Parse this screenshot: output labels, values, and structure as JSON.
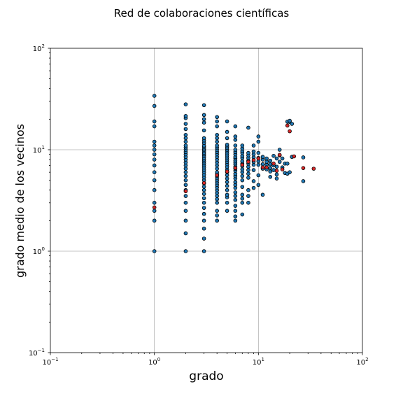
{
  "chart_data": {
    "type": "scatter",
    "title": "Red de colaboraciones científicas",
    "xlabel": "grado",
    "ylabel": "grado medio de los vecinos",
    "xscale": "log",
    "yscale": "log",
    "xlim": [
      0.1,
      100
    ],
    "ylim": [
      0.1,
      100
    ],
    "grid": true,
    "x_ticks": [
      {
        "base": "10",
        "exp": "−1"
      },
      {
        "base": "10",
        "exp": "0"
      },
      {
        "base": "10",
        "exp": "1"
      },
      {
        "base": "10",
        "exp": "2"
      }
    ],
    "y_ticks": [
      {
        "base": "10",
        "exp": "−1"
      },
      {
        "base": "10",
        "exp": "0"
      },
      {
        "base": "10",
        "exp": "1"
      },
      {
        "base": "10",
        "exp": "2"
      }
    ],
    "colors": {
      "nodes": "#1f77b4",
      "average": "#d62728",
      "edge": "#000000"
    },
    "series": [
      {
        "color": "#1f77b4",
        "points": [
          [
            1,
            1.0
          ],
          [
            1,
            2.0
          ],
          [
            1,
            2.5
          ],
          [
            1,
            3.0
          ],
          [
            1,
            4.0
          ],
          [
            1,
            5.0
          ],
          [
            1,
            6.0
          ],
          [
            1,
            7.0
          ],
          [
            1,
            8.0
          ],
          [
            1,
            9.0
          ],
          [
            1,
            10.0
          ],
          [
            1,
            11.0
          ],
          [
            1,
            12.0
          ],
          [
            1,
            17.0
          ],
          [
            1,
            19.0
          ],
          [
            1,
            27.0
          ],
          [
            1,
            34.0
          ],
          [
            2,
            1.0
          ],
          [
            2,
            1.5
          ],
          [
            2,
            2.0
          ],
          [
            2,
            2.5
          ],
          [
            2,
            3.0
          ],
          [
            2,
            3.5
          ],
          [
            2,
            4.0
          ],
          [
            2,
            4.5
          ],
          [
            2,
            5.0
          ],
          [
            2,
            5.5
          ],
          [
            2,
            6.0
          ],
          [
            2,
            6.5
          ],
          [
            2,
            7.0
          ],
          [
            2,
            7.5
          ],
          [
            2,
            8.0
          ],
          [
            2,
            8.5
          ],
          [
            2,
            9.0
          ],
          [
            2,
            9.5
          ],
          [
            2,
            10.0
          ],
          [
            2,
            10.5
          ],
          [
            2,
            11.0
          ],
          [
            2,
            12.0
          ],
          [
            2,
            13.0
          ],
          [
            2,
            14.0
          ],
          [
            2,
            16.0
          ],
          [
            2,
            18.0
          ],
          [
            2,
            20.5
          ],
          [
            2,
            21.5
          ],
          [
            2,
            28.0
          ],
          [
            3,
            1.0
          ],
          [
            3,
            1.33
          ],
          [
            3,
            1.67
          ],
          [
            3,
            2.0
          ],
          [
            3,
            2.33
          ],
          [
            3,
            2.67
          ],
          [
            3,
            3.0
          ],
          [
            3,
            3.33
          ],
          [
            3,
            3.67
          ],
          [
            3,
            4.0
          ],
          [
            3,
            4.33
          ],
          [
            3,
            4.67
          ],
          [
            3,
            5.0
          ],
          [
            3,
            5.33
          ],
          [
            3,
            5.67
          ],
          [
            3,
            6.0
          ],
          [
            3,
            6.33
          ],
          [
            3,
            6.67
          ],
          [
            3,
            7.0
          ],
          [
            3,
            7.33
          ],
          [
            3,
            7.67
          ],
          [
            3,
            8.0
          ],
          [
            3,
            8.33
          ],
          [
            3,
            8.67
          ],
          [
            3,
            9.0
          ],
          [
            3,
            9.33
          ],
          [
            3,
            9.67
          ],
          [
            3,
            10.0
          ],
          [
            3,
            10.33
          ],
          [
            3,
            10.67
          ],
          [
            3,
            11.0
          ],
          [
            3,
            11.67
          ],
          [
            3,
            12.33
          ],
          [
            3,
            13.0
          ],
          [
            3,
            15.5
          ],
          [
            3,
            18.5
          ],
          [
            3,
            20.0
          ],
          [
            3,
            22.0
          ],
          [
            3,
            27.5
          ],
          [
            4,
            2.0
          ],
          [
            4,
            2.25
          ],
          [
            4,
            2.5
          ],
          [
            4,
            3.0
          ],
          [
            4,
            3.25
          ],
          [
            4,
            3.5
          ],
          [
            4,
            3.75
          ],
          [
            4,
            4.0
          ],
          [
            4,
            4.25
          ],
          [
            4,
            4.5
          ],
          [
            4,
            4.75
          ],
          [
            4,
            5.0
          ],
          [
            4,
            5.25
          ],
          [
            4,
            5.5
          ],
          [
            4,
            5.75
          ],
          [
            4,
            6.0
          ],
          [
            4,
            6.5
          ],
          [
            4,
            7.0
          ],
          [
            4,
            7.5
          ],
          [
            4,
            8.0
          ],
          [
            4,
            8.5
          ],
          [
            4,
            9.0
          ],
          [
            4,
            9.5
          ],
          [
            4,
            10.0
          ],
          [
            4,
            10.5
          ],
          [
            4,
            11.0
          ],
          [
            4,
            12.0
          ],
          [
            4,
            13.0
          ],
          [
            4,
            14.0
          ],
          [
            4,
            17.0
          ],
          [
            4,
            19.0
          ],
          [
            4,
            21.0
          ],
          [
            5,
            2.5
          ],
          [
            5,
            3.0
          ],
          [
            5,
            3.4
          ],
          [
            5,
            3.6
          ],
          [
            5,
            4.0
          ],
          [
            5,
            4.4
          ],
          [
            5,
            4.8
          ],
          [
            5,
            5.2
          ],
          [
            5,
            5.6
          ],
          [
            5,
            6.0
          ],
          [
            5,
            6.4
          ],
          [
            5,
            6.8
          ],
          [
            5,
            7.2
          ],
          [
            5,
            7.6
          ],
          [
            5,
            8.0
          ],
          [
            5,
            8.4
          ],
          [
            5,
            8.8
          ],
          [
            5,
            9.2
          ],
          [
            5,
            9.6
          ],
          [
            5,
            10.0
          ],
          [
            5,
            10.4
          ],
          [
            5,
            10.8
          ],
          [
            5,
            11.2
          ],
          [
            5,
            13.0
          ],
          [
            5,
            15.0
          ],
          [
            5,
            19.0
          ],
          [
            6,
            2.0
          ],
          [
            6,
            2.2
          ],
          [
            6,
            2.5
          ],
          [
            6,
            2.8
          ],
          [
            6,
            3.2
          ],
          [
            6,
            3.5
          ],
          [
            6,
            3.8
          ],
          [
            6,
            4.2
          ],
          [
            6,
            4.5
          ],
          [
            6,
            4.8
          ],
          [
            6,
            5.2
          ],
          [
            6,
            5.5
          ],
          [
            6,
            5.8
          ],
          [
            6,
            6.2
          ],
          [
            6,
            6.5
          ],
          [
            6,
            6.8
          ],
          [
            6,
            7.2
          ],
          [
            6,
            7.5
          ],
          [
            6,
            7.8
          ],
          [
            6,
            8.2
          ],
          [
            6,
            8.5
          ],
          [
            6,
            9.0
          ],
          [
            6,
            9.5
          ],
          [
            6,
            10.0
          ],
          [
            6,
            11.0
          ],
          [
            6,
            12.5
          ],
          [
            6,
            13.5
          ],
          [
            6,
            17.0
          ],
          [
            7,
            2.3
          ],
          [
            7,
            3.0
          ],
          [
            7,
            3.3
          ],
          [
            7,
            3.6
          ],
          [
            7,
            4.3
          ],
          [
            7,
            5.0
          ],
          [
            7,
            5.5
          ],
          [
            7,
            6.0
          ],
          [
            7,
            6.4
          ],
          [
            7,
            6.9
          ],
          [
            7,
            7.3
          ],
          [
            7,
            7.7
          ],
          [
            7,
            8.3
          ],
          [
            7,
            8.7
          ],
          [
            7,
            9.3
          ],
          [
            7,
            9.7
          ],
          [
            7,
            10.3
          ],
          [
            7,
            11.0
          ],
          [
            8,
            3.0
          ],
          [
            8,
            3.5
          ],
          [
            8,
            4.0
          ],
          [
            8,
            5.3
          ],
          [
            8,
            5.8
          ],
          [
            8,
            6.3
          ],
          [
            8,
            6.8
          ],
          [
            8,
            7.3
          ],
          [
            8,
            7.8
          ],
          [
            8,
            8.3
          ],
          [
            8,
            8.8
          ],
          [
            8,
            9.3
          ],
          [
            8,
            16.5
          ],
          [
            9,
            4.2
          ],
          [
            9,
            4.9
          ],
          [
            9,
            6.3
          ],
          [
            9,
            7.1
          ],
          [
            9,
            7.6
          ],
          [
            9,
            8.4
          ],
          [
            9,
            9.0
          ],
          [
            9,
            9.6
          ],
          [
            9,
            11.0
          ],
          [
            10,
            4.5
          ],
          [
            10,
            5.6
          ],
          [
            10,
            7.1
          ],
          [
            10,
            7.7
          ],
          [
            10,
            8.3
          ],
          [
            10,
            9.3
          ],
          [
            10,
            12.0
          ],
          [
            10,
            13.5
          ],
          [
            11,
            3.6
          ],
          [
            11,
            6.5
          ],
          [
            11,
            7.2
          ],
          [
            11,
            8.0
          ],
          [
            11,
            8.5
          ],
          [
            12,
            6.4
          ],
          [
            12,
            7.1
          ],
          [
            12,
            7.6
          ],
          [
            12,
            8.2
          ],
          [
            13,
            5.4
          ],
          [
            13,
            6.1
          ],
          [
            13,
            6.6
          ],
          [
            13,
            7.2
          ],
          [
            13,
            7.8
          ],
          [
            14,
            6.3
          ],
          [
            14,
            7.0
          ],
          [
            14,
            8.7
          ],
          [
            15,
            5.2
          ],
          [
            15,
            5.7
          ],
          [
            15,
            6.8
          ],
          [
            15,
            8.2
          ],
          [
            16,
            7.6
          ],
          [
            16,
            8.8
          ],
          [
            16,
            10.0
          ],
          [
            17,
            6.7
          ],
          [
            17,
            8.2
          ],
          [
            18,
            5.9
          ],
          [
            18,
            7.3
          ],
          [
            19,
            5.8
          ],
          [
            19,
            7.3
          ],
          [
            19,
            18.9
          ],
          [
            20,
            6.0
          ],
          [
            20,
            18.8
          ],
          [
            20,
            19.3
          ],
          [
            21,
            18.0
          ],
          [
            21,
            8.5
          ],
          [
            27,
            4.9
          ],
          [
            27,
            8.4
          ]
        ]
      },
      {
        "color": "#d62728",
        "points": [
          [
            1,
            2.7
          ],
          [
            2,
            3.9
          ],
          [
            3,
            4.7
          ],
          [
            4,
            5.6
          ],
          [
            5,
            6.1
          ],
          [
            6,
            6.6
          ],
          [
            7,
            7.1
          ],
          [
            8,
            7.6
          ],
          [
            9,
            7.9
          ],
          [
            10,
            8.2
          ],
          [
            11,
            6.7
          ],
          [
            12,
            6.7
          ],
          [
            14,
            7.3
          ],
          [
            15,
            6.2
          ],
          [
            16,
            8.9
          ],
          [
            17,
            6.4
          ],
          [
            19,
            17.3
          ],
          [
            20,
            15.2
          ],
          [
            22,
            8.6
          ],
          [
            27,
            6.6
          ],
          [
            34,
            6.5
          ]
        ]
      }
    ]
  }
}
